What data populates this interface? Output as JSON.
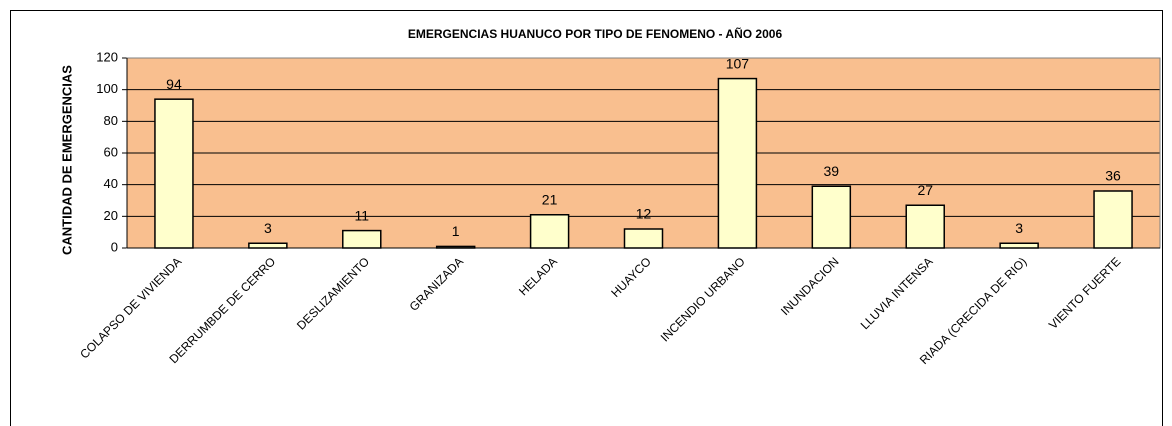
{
  "chart_data": {
    "type": "bar",
    "title": "EMERGENCIAS HUANUCO POR TIPO DE FENOMENO - AÑO 2006",
    "y_label": "CANTIDAD DE EMERGENCIAS",
    "categories": [
      "COLAPSO DE VIVIENDA",
      "DERRUMBDE DE CERRO",
      "DESLIZAMIENTO",
      "GRANIZADA",
      "HELADA",
      "HUAYCO",
      "INCENDIO URBANO",
      "INUNDACION",
      "LLUVIA INTENSA",
      "RIADA (CRECIDA DE RIO)",
      "VIENTO FUERTE"
    ],
    "values": [
      94,
      3,
      11,
      1,
      21,
      12,
      107,
      39,
      27,
      3,
      36
    ],
    "color": "#ffffcc",
    "plot_background": "#f9bf8f",
    "ylim": [
      0,
      120
    ],
    "yticks": [
      0,
      20,
      40,
      60,
      80,
      100,
      120
    ],
    "grid": true
  }
}
